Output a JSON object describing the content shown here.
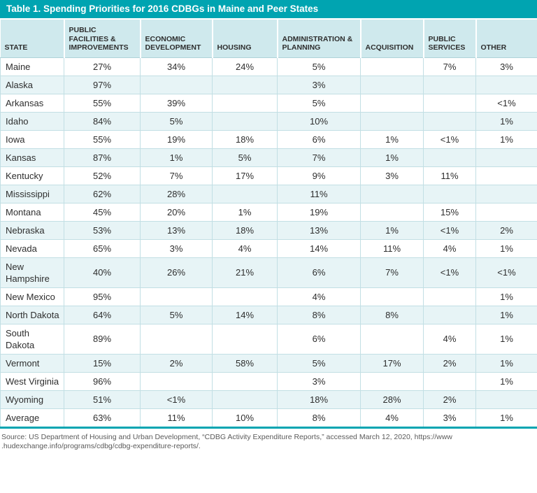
{
  "title_bar": {
    "title": "Table 1. Spending Priorities for 2016 CDBGs in Maine and Peer States"
  },
  "chart_data": {
    "type": "table",
    "title": "Table 1. Spending Priorities for 2016 CDBGs in Maine and Peer States",
    "columns": [
      {
        "key": "state",
        "label": "STATE"
      },
      {
        "key": "public-facilities-improvements",
        "label": "PUBLIC FACILITIES & IMPROVEMENTS"
      },
      {
        "key": "economic-development",
        "label": "ECONOMIC DEVELOPMENT"
      },
      {
        "key": "housing",
        "label": "HOUSING"
      },
      {
        "key": "administration-planning",
        "label": "ADMINISTRATION & PLANNING"
      },
      {
        "key": "acquisition",
        "label": "ACQUISITION"
      },
      {
        "key": "public-services",
        "label": "PUBLIC SERVICES"
      },
      {
        "key": "other",
        "label": "OTHER"
      }
    ],
    "rows": [
      {
        "state": "Maine",
        "values": [
          "27%",
          "34%",
          "24%",
          "5%",
          "",
          "7%",
          "3%"
        ]
      },
      {
        "state": "Alaska",
        "values": [
          "97%",
          "",
          "",
          "3%",
          "",
          "",
          ""
        ]
      },
      {
        "state": "Arkansas",
        "values": [
          "55%",
          "39%",
          "",
          "5%",
          "",
          "",
          "<1%"
        ]
      },
      {
        "state": "Idaho",
        "values": [
          "84%",
          "5%",
          "",
          "10%",
          "",
          "",
          "1%"
        ]
      },
      {
        "state": "Iowa",
        "values": [
          "55%",
          "19%",
          "18%",
          "6%",
          "1%",
          "<1%",
          "1%"
        ]
      },
      {
        "state": "Kansas",
        "values": [
          "87%",
          "1%",
          "5%",
          "7%",
          "1%",
          "",
          ""
        ]
      },
      {
        "state": "Kentucky",
        "values": [
          "52%",
          "7%",
          "17%",
          "9%",
          "3%",
          "11%",
          ""
        ]
      },
      {
        "state": "Mississippi",
        "values": [
          "62%",
          "28%",
          "",
          "11%",
          "",
          "",
          ""
        ]
      },
      {
        "state": "Montana",
        "values": [
          "45%",
          "20%",
          "1%",
          "19%",
          "",
          "15%",
          ""
        ]
      },
      {
        "state": "Nebraska",
        "values": [
          "53%",
          "13%",
          "18%",
          "13%",
          "1%",
          "<1%",
          "2%"
        ]
      },
      {
        "state": "Nevada",
        "values": [
          "65%",
          "3%",
          "4%",
          "14%",
          "11%",
          "4%",
          "1%"
        ]
      },
      {
        "state": "New Hampshire",
        "values": [
          "40%",
          "26%",
          "21%",
          "6%",
          "7%",
          "<1%",
          "<1%"
        ]
      },
      {
        "state": "New Mexico",
        "values": [
          "95%",
          "",
          "",
          "4%",
          "",
          "",
          "1%"
        ]
      },
      {
        "state": "North Dakota",
        "values": [
          "64%",
          "5%",
          "14%",
          "8%",
          "8%",
          "",
          "1%"
        ]
      },
      {
        "state": "South Dakota",
        "values": [
          "89%",
          "",
          "",
          "6%",
          "",
          "4%",
          "1%"
        ]
      },
      {
        "state": "Vermont",
        "values": [
          "15%",
          "2%",
          "58%",
          "5%",
          "17%",
          "2%",
          "1%"
        ]
      },
      {
        "state": "West Virginia",
        "values": [
          "96%",
          "",
          "",
          "3%",
          "",
          "",
          "1%"
        ]
      },
      {
        "state": "Wyoming",
        "values": [
          "51%",
          "<1%",
          "",
          "18%",
          "28%",
          "2%",
          ""
        ]
      },
      {
        "state": "Average",
        "values": [
          "63%",
          "11%",
          "10%",
          "8%",
          "4%",
          "3%",
          "1%"
        ]
      }
    ]
  },
  "source": {
    "line1": "Source: US Department of Housing and Urban Development, “CDBG Activity Expenditure Reports,” accessed March 12, 2020, https://www",
    "line2": ".hudexchange.info/programs/cdbg/cdbg-expenditure-reports/."
  },
  "colors": {
    "title_bar_bg": "#00a4b1",
    "header_bg": "#cfe9ed",
    "row_alt_bg": "#e7f4f6",
    "border": "#c2dfe4",
    "bottom_rule": "#00a4b1",
    "text": "#2e2e2e",
    "source_text": "#5a5a5a"
  }
}
